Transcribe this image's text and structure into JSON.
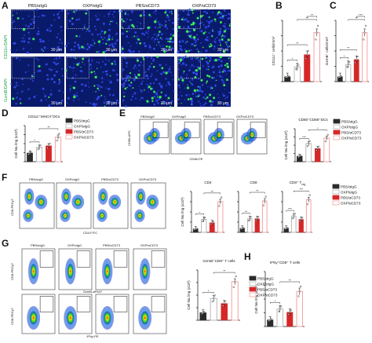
{
  "panels": {
    "A": {
      "label": "A",
      "groups": [
        "PBS/αIgG",
        "OXP/αIgG",
        "PBS/αCD73",
        "OXP/αCD73"
      ],
      "rows": [
        {
          "label": "CD11c/DAPI",
          "scale": "30 μm"
        },
        {
          "label": "GzmB/DAPI",
          "scale": "30 μm"
        }
      ]
    },
    "B": {
      "label": "B"
    },
    "C": {
      "label": "C"
    },
    "D": {
      "label": "D",
      "title": "CD11c⁺MHCII⁺DCs"
    },
    "E": {
      "label": "E",
      "groups": [
        "PBS/αIgG",
        "OXP/αIgG",
        "PBS/αCD73",
        "OXP/αCD73"
      ],
      "xlabel": "CD86-PE",
      "ylabel": "CD80-APC"
    },
    "F": {
      "label": "F",
      "groups": [
        "PBS/αIgG",
        "OXP/αIgG",
        "PBS/αCD73",
        "OXP/αCD73"
      ],
      "xlabel": "CD4-FITC",
      "ylabel": "CD8-PECy7"
    },
    "G": {
      "label": "G",
      "groups": [
        "PBS/αIgG",
        "OXP/αIgG",
        "PBS/αCD73",
        "OXP/αCD73"
      ],
      "top_xlabel": "GzmB-AF647",
      "top_ylabel": "CD8-PECy7",
      "bottom_xlabel": "IFNγ-PE",
      "bottom_ylabel": "CD8-PECy7"
    },
    "H": {
      "label": "H"
    }
  },
  "legend": {
    "items": [
      "PBS/αIgG",
      "OXP/αIgG",
      "PBS/αCD73",
      "OXP/αCD73"
    ],
    "colors": [
      "#2b2b2b",
      "#b8b8b8",
      "#d62728",
      "#f4a3a3"
    ]
  },
  "colors": {
    "c1": "#2b2b2b",
    "c2": "#b8b8b8",
    "c3": "#d62728",
    "c4": "#f4a3a3"
  },
  "chart_data": [
    {
      "id": "B",
      "type": "bar",
      "ylabel": "CD11c⁺ cells/mm²",
      "categories": [
        "PBS/αIgG",
        "OXP/αIgG",
        "PBS/αCD73",
        "OXP/αCD73"
      ],
      "values": [
        2,
        6,
        11,
        20
      ],
      "ylim": [
        0,
        25
      ],
      "sig": [
        "*",
        "**",
        "**",
        "**"
      ]
    },
    {
      "id": "C",
      "type": "bar",
      "ylabel": "GzmB⁺ cells/mm²",
      "categories": [
        "PBS/αIgG",
        "OXP/αIgG",
        "PBS/αCD73",
        "OXP/αCD73"
      ],
      "values": [
        2,
        7,
        9,
        20
      ],
      "ylim": [
        0,
        25
      ],
      "sig": [
        "*",
        "**",
        "**",
        "***"
      ]
    },
    {
      "id": "D",
      "type": "bar",
      "title": "CD11c⁺MHCII⁺DCs",
      "ylabel": "Cell No./mg (x10³)",
      "categories": [
        "PBS/αIgG",
        "OXP/αIgG",
        "PBS/αCD73",
        "OXP/αCD73"
      ],
      "values": [
        1.2,
        2.0,
        2.2,
        3.4
      ],
      "ylim": [
        0,
        5
      ],
      "sig": [
        "*",
        "**"
      ]
    },
    {
      "id": "E",
      "type": "bar",
      "title": "CD80⁺CD86⁺DCs",
      "ylabel": "Cell No./mg (x10³)",
      "categories": [
        "PBS/αIgG",
        "OXP/αIgG",
        "PBS/αCD73",
        "OXP/αCD73"
      ],
      "values": [
        1.0,
        3.3,
        2.4,
        4.3
      ],
      "ylim": [
        0,
        6
      ],
      "sig": [
        "***",
        "*"
      ]
    },
    {
      "id": "F1",
      "type": "bar",
      "title": "CD4",
      "ylabel": "Cell No./mg (x10³)",
      "categories": [
        "PBS/αIgG",
        "OXP/αIgG",
        "PBS/αCD73",
        "OXP/αCD73"
      ],
      "values": [
        0.5,
        1.9,
        1.4,
        4.5
      ],
      "ylim": [
        0,
        6
      ],
      "sig": [
        "*",
        "**"
      ]
    },
    {
      "id": "F2",
      "type": "bar",
      "title": "CD8",
      "categories": [
        "PBS/αIgG",
        "OXP/αIgG",
        "PBS/αCD73",
        "OXP/αCD73"
      ],
      "values": [
        0.6,
        2.0,
        2.0,
        4.6
      ],
      "ylim": [
        0,
        6
      ],
      "sig": [
        "**",
        "**"
      ]
    },
    {
      "id": "F3",
      "type": "bar",
      "title": "CD8⁺ T",
      "title_suffix": "reg",
      "categories": [
        "PBS/αIgG",
        "OXP/αIgG",
        "PBS/αCD73",
        "OXP/αCD73"
      ],
      "values": [
        0.6,
        2.4,
        1.9,
        4.8
      ],
      "ylim": [
        0,
        6
      ],
      "sig": [
        "***",
        "***"
      ]
    },
    {
      "id": "G",
      "type": "bar",
      "title": "GzmB⁺CD8⁺ T cells",
      "ylabel": "Cell No./mg (x10³)",
      "categories": [
        "PBS/αIgG",
        "OXP/αIgG",
        "PBS/αCD73",
        "OXP/αCD73"
      ],
      "values": [
        0.9,
        2.6,
        2.0,
        4.6
      ],
      "ylim": [
        0,
        6
      ],
      "sig": [
        "*",
        "**"
      ]
    },
    {
      "id": "H",
      "type": "bar",
      "title": "IFNγ⁺CD8⁺ T cells",
      "ylabel": "Cell No./mg (x10³)",
      "categories": [
        "PBS/αIgG",
        "OXP/αIgG",
        "PBS/αCD73",
        "OXP/αCD73"
      ],
      "values": [
        0.6,
        1.6,
        1.3,
        3.2
      ],
      "ylim": [
        0,
        5
      ],
      "sig": [
        "*",
        "**"
      ]
    }
  ]
}
